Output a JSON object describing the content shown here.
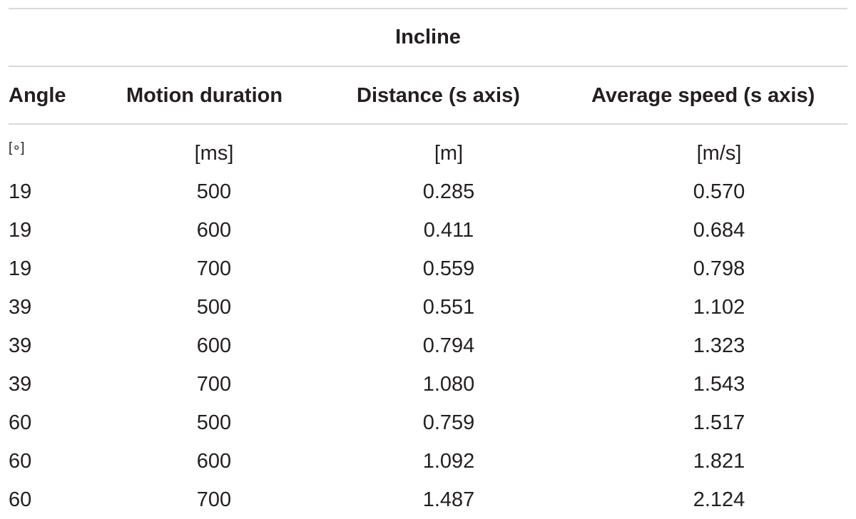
{
  "table": {
    "group_header": "Incline",
    "columns": [
      "Angle",
      "Motion duration",
      "Distance (s axis)",
      "Average speed (s axis)"
    ],
    "units": [
      "[∘]",
      "[ms]",
      "[m]",
      "[m/s]"
    ],
    "rows": [
      [
        "19",
        "500",
        "0.285",
        "0.570"
      ],
      [
        "19",
        "600",
        "0.411",
        "0.684"
      ],
      [
        "19",
        "700",
        "0.559",
        "0.798"
      ],
      [
        "39",
        "500",
        "0.551",
        "1.102"
      ],
      [
        "39",
        "600",
        "0.794",
        "1.323"
      ],
      [
        "39",
        "700",
        "1.080",
        "1.543"
      ],
      [
        "60",
        "500",
        "0.759",
        "1.517"
      ],
      [
        "60",
        "600",
        "1.092",
        "1.821"
      ],
      [
        "60",
        "700",
        "1.487",
        "2.124"
      ]
    ]
  }
}
